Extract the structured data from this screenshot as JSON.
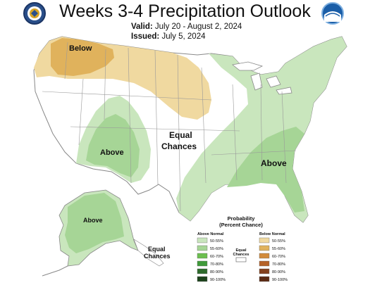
{
  "title": "Weeks 3-4 Precipitation Outlook",
  "valid_label": "Valid:",
  "valid_dates": "July 20 - August 2, 2024",
  "issued_label": "Issued:",
  "issued_date": "July 5, 2024",
  "map_labels": {
    "below": "Below",
    "above_southwest": "Above",
    "above_southeast": "Above",
    "above_alaska": "Above",
    "equal_chances_line1": "Equal",
    "equal_chances_line2": "Chances",
    "ak_equal_line1": "Equal",
    "ak_equal_line2": "Chances"
  },
  "legend": {
    "title_line1": "Probability",
    "title_line2": "(Percent Chance)",
    "above_header": "Above Normal",
    "below_header": "Below Normal",
    "equal_line1": "Equal",
    "equal_line2": "Chances",
    "above": [
      {
        "label": "50-55%",
        "color": "#c9e6bd"
      },
      {
        "label": "55-60%",
        "color": "#a6d596"
      },
      {
        "label": "60-70%",
        "color": "#6cbf4f"
      },
      {
        "label": "70-80%",
        "color": "#3f9a3a"
      },
      {
        "label": "80-90%",
        "color": "#2e6b2c"
      },
      {
        "label": "90-100%",
        "color": "#1c421b"
      }
    ],
    "below": [
      {
        "label": "50-55%",
        "color": "#f0d9a0"
      },
      {
        "label": "55-60%",
        "color": "#e0b25c"
      },
      {
        "label": "60-70%",
        "color": "#d28b3b"
      },
      {
        "label": "70-80%",
        "color": "#b56228"
      },
      {
        "label": "80-90%",
        "color": "#84401d"
      },
      {
        "label": "90-100%",
        "color": "#5b2a13"
      }
    ]
  },
  "colors": {
    "above_light": "#c9e6bd",
    "above_mid": "#a6d596",
    "below_light": "#f0d9a0",
    "below_mid": "#e0b25c",
    "land": "#ffffff",
    "border": "#999999"
  },
  "icons": {
    "left_logo": "noaa-department-of-commerce-seal-icon",
    "right_logo": "noaa-logo-icon"
  }
}
